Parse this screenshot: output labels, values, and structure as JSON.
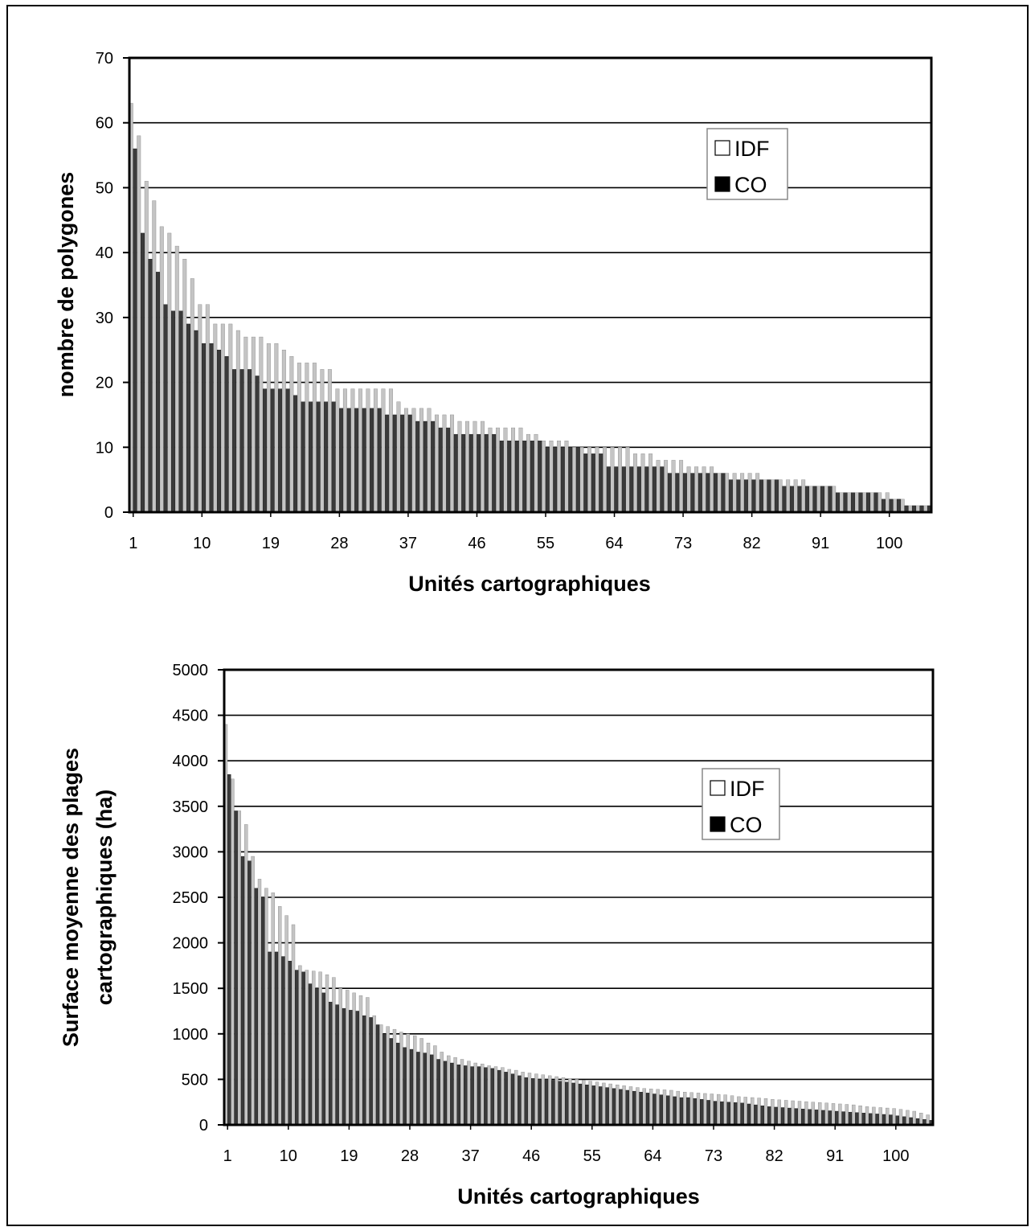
{
  "chart_data": [
    {
      "type": "bar",
      "xlabel": "Unités cartographiques",
      "ylabel": "nombre de polygones",
      "ylim": [
        0,
        70
      ],
      "yticks": [
        0,
        10,
        20,
        30,
        40,
        50,
        60,
        70
      ],
      "xticks": [
        1,
        10,
        19,
        28,
        37,
        46,
        55,
        64,
        73,
        82,
        91,
        100
      ],
      "n_units": 105,
      "grid": true,
      "legend_position": "top-right",
      "colors": {
        "IDF": "#c4c4c4",
        "CO": "#3a3a3a"
      },
      "series": [
        {
          "name": "IDF",
          "values": [
            63,
            58,
            51,
            48,
            44,
            43,
            41,
            39,
            36,
            32,
            32,
            29,
            29,
            29,
            28,
            27,
            27,
            27,
            26,
            26,
            25,
            24,
            23,
            23,
            23,
            22,
            22,
            19,
            19,
            19,
            19,
            19,
            19,
            19,
            19,
            17,
            16,
            16,
            16,
            16,
            15,
            15,
            15,
            14,
            14,
            14,
            14,
            13,
            13,
            13,
            13,
            13,
            12,
            12,
            11,
            11,
            11,
            11,
            10,
            10,
            10,
            10,
            10,
            10,
            10,
            10,
            9,
            9,
            9,
            8,
            8,
            8,
            8,
            7,
            7,
            7,
            7,
            6,
            6,
            6,
            6,
            6,
            6,
            5,
            5,
            5,
            5,
            5,
            5,
            4,
            4,
            4,
            4,
            3,
            3,
            3,
            3,
            3,
            3,
            3,
            2,
            2,
            1,
            1,
            1
          ]
        },
        {
          "name": "CO",
          "values": [
            56,
            43,
            39,
            37,
            32,
            31,
            31,
            29,
            28,
            26,
            26,
            25,
            24,
            22,
            22,
            22,
            21,
            19,
            19,
            19,
            19,
            18,
            17,
            17,
            17,
            17,
            17,
            16,
            16,
            16,
            16,
            16,
            16,
            15,
            15,
            15,
            15,
            14,
            14,
            14,
            13,
            13,
            12,
            12,
            12,
            12,
            12,
            12,
            11,
            11,
            11,
            11,
            11,
            11,
            10,
            10,
            10,
            10,
            10,
            9,
            9,
            9,
            7,
            7,
            7,
            7,
            7,
            7,
            7,
            7,
            6,
            6,
            6,
            6,
            6,
            6,
            6,
            6,
            5,
            5,
            5,
            5,
            5,
            5,
            5,
            4,
            4,
            4,
            4,
            4,
            4,
            4,
            3,
            3,
            3,
            3,
            3,
            3,
            2,
            2,
            2,
            1,
            1,
            1,
            1
          ]
        }
      ]
    },
    {
      "type": "bar",
      "xlabel": "Unités cartographiques",
      "ylabel_lines": [
        "Surface moyenne des plages",
        "cartographiques (ha)"
      ],
      "ylim": [
        0,
        5000
      ],
      "yticks": [
        0,
        500,
        1000,
        1500,
        2000,
        2500,
        3000,
        3500,
        4000,
        4500,
        5000
      ],
      "xticks": [
        1,
        10,
        19,
        28,
        37,
        46,
        55,
        64,
        73,
        82,
        91,
        100
      ],
      "n_units": 105,
      "grid": true,
      "legend_position": "top-right",
      "colors": {
        "IDF": "#c4c4c4",
        "CO": "#3a3a3a"
      },
      "series": [
        {
          "name": "IDF",
          "values": [
            4400,
            3800,
            3450,
            3300,
            2950,
            2700,
            2600,
            2550,
            2400,
            2300,
            2200,
            1750,
            1700,
            1690,
            1680,
            1650,
            1620,
            1500,
            1480,
            1450,
            1420,
            1400,
            1200,
            1100,
            1080,
            1050,
            1020,
            1000,
            980,
            950,
            900,
            870,
            800,
            760,
            740,
            720,
            700,
            680,
            670,
            650,
            640,
            630,
            610,
            600,
            580,
            570,
            560,
            550,
            540,
            530,
            520,
            510,
            500,
            490,
            480,
            470,
            460,
            450,
            440,
            430,
            420,
            410,
            400,
            395,
            390,
            385,
            380,
            370,
            360,
            355,
            350,
            345,
            340,
            335,
            330,
            320,
            310,
            305,
            300,
            295,
            290,
            280,
            275,
            270,
            265,
            260,
            255,
            250,
            245,
            240,
            235,
            230,
            225,
            220,
            210,
            200,
            195,
            190,
            185,
            180,
            170,
            160,
            150,
            130,
            110
          ]
        },
        {
          "name": "CO",
          "values": [
            3850,
            3450,
            2950,
            2900,
            2600,
            2500,
            1900,
            1900,
            1850,
            1800,
            1700,
            1680,
            1550,
            1500,
            1450,
            1350,
            1320,
            1280,
            1260,
            1250,
            1200,
            1180,
            1100,
            1000,
            950,
            900,
            850,
            830,
            800,
            790,
            770,
            720,
            700,
            680,
            660,
            650,
            640,
            640,
            630,
            620,
            600,
            580,
            560,
            540,
            520,
            510,
            500,
            500,
            490,
            480,
            470,
            460,
            450,
            440,
            430,
            420,
            410,
            400,
            390,
            380,
            370,
            360,
            350,
            340,
            330,
            320,
            310,
            300,
            300,
            290,
            280,
            270,
            260,
            255,
            250,
            245,
            240,
            230,
            220,
            210,
            200,
            195,
            190,
            185,
            180,
            175,
            170,
            165,
            160,
            155,
            150,
            145,
            140,
            135,
            130,
            125,
            120,
            115,
            110,
            100,
            90,
            80,
            70,
            60,
            50
          ]
        }
      ]
    }
  ]
}
